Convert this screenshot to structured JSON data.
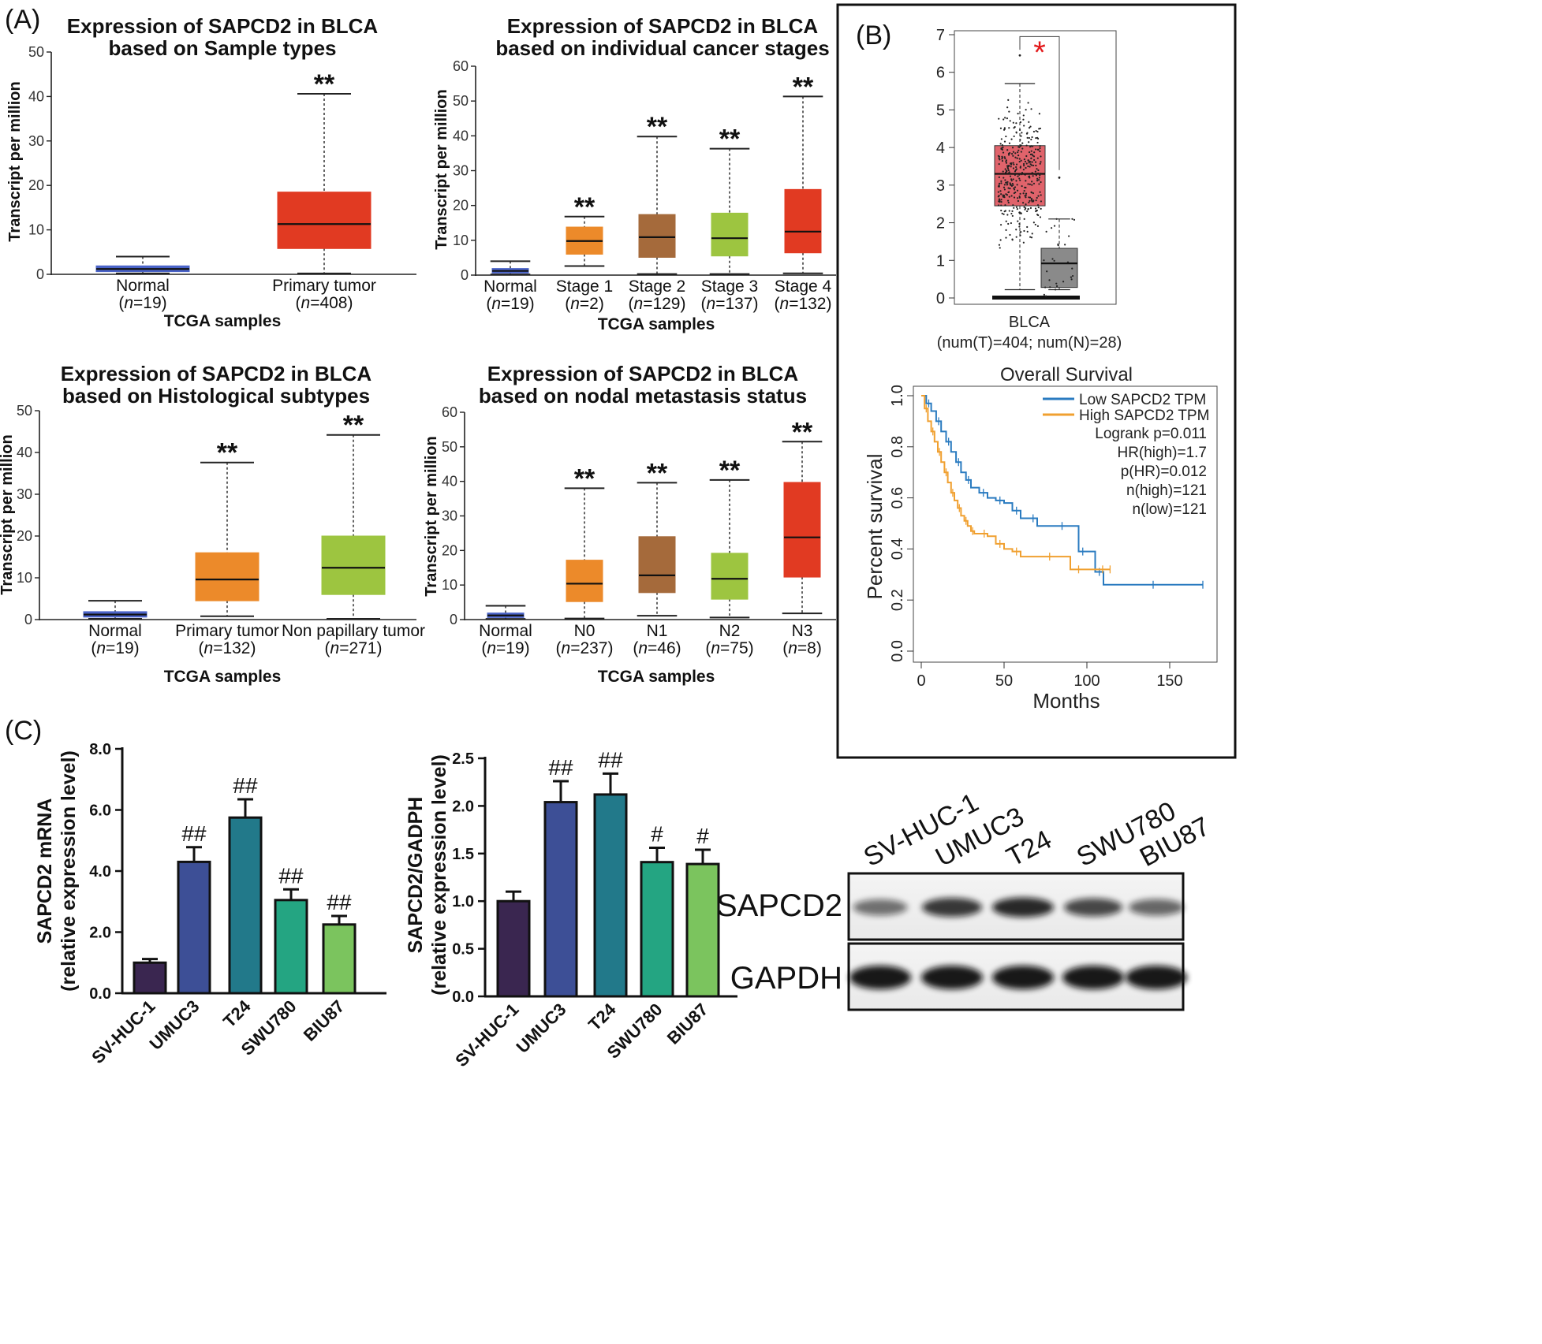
{
  "panel_labels": {
    "A": "(A)",
    "B": "(B)",
    "C": "(C)"
  },
  "colors": {
    "normal": "#4a63c8",
    "primary": "#e13a22",
    "stage1": "#ec8a2a",
    "stage2": "#a56a3b",
    "stage3": "#9dc540",
    "stage4": "#e13a22",
    "gepia_tumor": "#e0636b",
    "gepia_normal": "#8a8a8a",
    "km_low": "#2a7bc0",
    "km_high": "#f0a030",
    "sig_red": "#e31a1c",
    "bar1": "#3a2650",
    "bar2": "#3d4f96",
    "bar3": "#22798a",
    "bar4": "#24a582",
    "bar5": "#7bc45e"
  },
  "chart_data": [
    {
      "id": "A1",
      "type": "box",
      "title": [
        "Expression of SAPCD2 in BLCA",
        "based on Sample types"
      ],
      "ylabel": "Transcript per million",
      "xlabel": "TCGA samples",
      "ylim": [
        0,
        50
      ],
      "yticks": [
        0,
        10,
        20,
        30,
        40,
        50
      ],
      "categories": [
        {
          "name": "Normal",
          "n": "19",
          "min": 0.2,
          "q1": 0.6,
          "median": 1.2,
          "q3": 1.9,
          "max": 4.0,
          "color": "#4a63c8",
          "sig": ""
        },
        {
          "name": "Primary tumor",
          "n": "408",
          "min": 0.2,
          "q1": 5.8,
          "median": 11.3,
          "q3": 18.5,
          "max": 40.6,
          "color": "#e13a22",
          "sig": "**"
        }
      ]
    },
    {
      "id": "A2",
      "type": "box",
      "title": [
        "Expression of SAPCD2 in BLCA",
        "based on individual cancer stages"
      ],
      "ylabel": "Transcript per million",
      "xlabel": "TCGA samples",
      "ylim": [
        0,
        60
      ],
      "yticks": [
        0,
        10,
        20,
        30,
        40,
        50,
        60
      ],
      "categories": [
        {
          "name": "Normal",
          "n": "19",
          "min": 0.2,
          "q1": 0.6,
          "median": 1.2,
          "q3": 1.9,
          "max": 4.0,
          "color": "#4a63c8",
          "sig": ""
        },
        {
          "name": "Stage 1",
          "n": "2",
          "min": 2.6,
          "q1": 6.0,
          "median": 9.8,
          "q3": 13.8,
          "max": 16.8,
          "color": "#ec8a2a",
          "sig": "**"
        },
        {
          "name": "Stage 2",
          "n": "129",
          "min": 0.3,
          "q1": 5.1,
          "median": 10.9,
          "q3": 17.4,
          "max": 39.8,
          "color": "#a56a3b",
          "sig": "**"
        },
        {
          "name": "Stage 3",
          "n": "137",
          "min": 0.3,
          "q1": 5.5,
          "median": 10.6,
          "q3": 17.8,
          "max": 36.3,
          "color": "#9dc540",
          "sig": "**"
        },
        {
          "name": "Stage 4",
          "n": "132",
          "min": 0.5,
          "q1": 6.4,
          "median": 12.5,
          "q3": 24.6,
          "max": 51.3,
          "color": "#e13a22",
          "sig": "**"
        }
      ]
    },
    {
      "id": "A3",
      "type": "box",
      "title": [
        "Expression of SAPCD2 in BLCA",
        "based on Histological subtypes"
      ],
      "ylabel": "Transcript per million",
      "xlabel": "TCGA samples",
      "ylim": [
        0,
        50
      ],
      "yticks": [
        0,
        10,
        20,
        30,
        40,
        50
      ],
      "categories": [
        {
          "name": "Normal",
          "n": "19",
          "min": 0.2,
          "q1": 0.6,
          "median": 1.2,
          "q3": 1.9,
          "max": 4.5,
          "color": "#4a63c8",
          "sig": ""
        },
        {
          "name": "Primary tumor",
          "n": "132",
          "min": 0.8,
          "q1": 4.5,
          "median": 9.6,
          "q3": 16.0,
          "max": 37.6,
          "color": "#ec8a2a",
          "sig": "**"
        },
        {
          "name": "Non papillary tumor",
          "n": "271",
          "min": 0.2,
          "q1": 6.0,
          "median": 12.4,
          "q3": 20.0,
          "max": 44.2,
          "color": "#9dc540",
          "sig": "**"
        }
      ]
    },
    {
      "id": "A4",
      "type": "box",
      "title": [
        "Expression of SAPCD2 in BLCA",
        "based on nodal metastasis status"
      ],
      "ylabel": "Transcript per million",
      "xlabel": "TCGA samples",
      "ylim": [
        0,
        60
      ],
      "yticks": [
        0,
        10,
        20,
        30,
        40,
        50,
        60
      ],
      "categories": [
        {
          "name": "Normal",
          "n": "19",
          "min": 0.2,
          "q1": 0.6,
          "median": 1.2,
          "q3": 1.9,
          "max": 4.0,
          "color": "#4a63c8",
          "sig": ""
        },
        {
          "name": "N0",
          "n": "237",
          "min": 0.3,
          "q1": 5.2,
          "median": 10.4,
          "q3": 17.2,
          "max": 38.0,
          "color": "#ec8a2a",
          "sig": "**"
        },
        {
          "name": "N1",
          "n": "46",
          "min": 1.1,
          "q1": 7.8,
          "median": 12.8,
          "q3": 24.0,
          "max": 39.6,
          "color": "#a56a3b",
          "sig": "**"
        },
        {
          "name": "N2",
          "n": "75",
          "min": 0.6,
          "q1": 5.9,
          "median": 11.8,
          "q3": 19.2,
          "max": 40.4,
          "color": "#9dc540",
          "sig": "**"
        },
        {
          "name": "N3",
          "n": "8",
          "min": 1.8,
          "q1": 12.3,
          "median": 23.8,
          "q3": 39.7,
          "max": 51.5,
          "color": "#e13a22",
          "sig": "**"
        }
      ]
    },
    {
      "id": "B1",
      "type": "box",
      "xlabel": "BLCA",
      "xsublabel": "(num(T)=404; num(N)=28)",
      "ylim": [
        0,
        7
      ],
      "yticks": [
        0,
        1,
        2,
        3,
        4,
        5,
        6,
        7
      ],
      "significance": "*",
      "boxes": [
        {
          "group": "Tumor",
          "min": 0.0,
          "q1": 2.45,
          "median": 3.3,
          "q3": 4.05,
          "max": 5.7,
          "outlier": 6.45,
          "color": "#e0636b"
        },
        {
          "group": "Normal",
          "min": 0.0,
          "q1": 0.28,
          "median": 0.92,
          "q3": 1.32,
          "max": 2.1,
          "outlier": 3.2,
          "color": "#8a8a8a"
        }
      ]
    },
    {
      "id": "B2",
      "type": "line",
      "title": "Overall Survival",
      "xlabel": "Months",
      "ylabel": "Percent survival",
      "xlim": [
        0,
        170
      ],
      "xticks": [
        0,
        50,
        100,
        150
      ],
      "ylim": [
        0,
        1
      ],
      "yticks": [
        "0.0",
        "0.2",
        "0.4",
        "0.6",
        "0.8",
        "1.0"
      ],
      "legend": {
        "position": "top-right",
        "entries": [
          "Low SAPCD2 TPM",
          "High SAPCD2 TPM"
        ]
      },
      "stats": [
        "Logrank p=0.011",
        "HR(high)=1.7",
        "p(HR)=0.012",
        "n(high)=121",
        "n(low)=121"
      ],
      "series": [
        {
          "name": "Low SAPCD2 TPM",
          "color": "#2a7bc0",
          "x": [
            0,
            3,
            6,
            9,
            12,
            15,
            18,
            21,
            24,
            27,
            30,
            35,
            40,
            45,
            50,
            55,
            60,
            65,
            70,
            80,
            90,
            95,
            100,
            105,
            110,
            130,
            150,
            170
          ],
          "y": [
            1.0,
            0.97,
            0.94,
            0.9,
            0.86,
            0.82,
            0.78,
            0.74,
            0.7,
            0.67,
            0.64,
            0.62,
            0.6,
            0.59,
            0.58,
            0.55,
            0.52,
            0.52,
            0.49,
            0.49,
            0.49,
            0.39,
            0.39,
            0.31,
            0.26,
            0.26,
            0.26,
            0.26
          ]
        },
        {
          "name": "High SAPCD2 TPM",
          "color": "#f0a030",
          "x": [
            0,
            2,
            4,
            6,
            8,
            10,
            12,
            14,
            16,
            18,
            20,
            22,
            24,
            26,
            28,
            30,
            32,
            36,
            40,
            45,
            50,
            55,
            60,
            70,
            85,
            90,
            100,
            105,
            114
          ],
          "y": [
            1.0,
            0.95,
            0.9,
            0.86,
            0.82,
            0.78,
            0.74,
            0.7,
            0.66,
            0.62,
            0.59,
            0.56,
            0.53,
            0.51,
            0.49,
            0.47,
            0.46,
            0.46,
            0.45,
            0.42,
            0.4,
            0.39,
            0.37,
            0.37,
            0.37,
            0.32,
            0.32,
            0.32,
            0.32
          ]
        }
      ]
    },
    {
      "id": "C1",
      "type": "bar",
      "ylabel": [
        "SAPCD2 mRNA",
        "(relative expression level)"
      ],
      "ylim": [
        0,
        8
      ],
      "yticks": [
        "0.0",
        "2.0",
        "4.0",
        "6.0",
        "8.0"
      ],
      "categories": [
        "SV-HUC-1",
        "UMUC3",
        "T24",
        "SWU780",
        "BIU87"
      ],
      "values": [
        1.0,
        4.3,
        5.75,
        3.05,
        2.25
      ],
      "errors": [
        0.12,
        0.48,
        0.6,
        0.35,
        0.28
      ],
      "labels": [
        "",
        "##",
        "##",
        "##",
        "##"
      ],
      "colors": [
        "#3a2650",
        "#3d4f96",
        "#22798a",
        "#24a582",
        "#7bc45e"
      ]
    },
    {
      "id": "C2",
      "type": "bar",
      "ylabel": [
        "SAPCD2/GADPH",
        "(relative expression level)"
      ],
      "ylim": [
        0,
        2.5
      ],
      "yticks": [
        "0.0",
        "0.5",
        "1.0",
        "1.5",
        "2.0",
        "2.5"
      ],
      "categories": [
        "SV-HUC-1",
        "UMUC3",
        "T24",
        "SWU780",
        "BIU87"
      ],
      "values": [
        1.0,
        2.04,
        2.12,
        1.41,
        1.39
      ],
      "errors": [
        0.1,
        0.22,
        0.22,
        0.15,
        0.15
      ],
      "labels": [
        "",
        "##",
        "##",
        "#",
        "#"
      ],
      "colors": [
        "#3a2650",
        "#3d4f96",
        "#22798a",
        "#24a582",
        "#7bc45e"
      ]
    }
  ],
  "western_blot": {
    "lanes": [
      "SV-HUC-1",
      "UMUC3",
      "T24",
      "SWU780",
      "BIU87"
    ],
    "rows": [
      {
        "label": "SAPCD2",
        "intensity": [
          0.45,
          0.8,
          0.9,
          0.7,
          0.5
        ]
      },
      {
        "label": "GAPDH",
        "intensity": [
          1.0,
          1.0,
          1.0,
          1.0,
          1.0
        ]
      }
    ]
  }
}
